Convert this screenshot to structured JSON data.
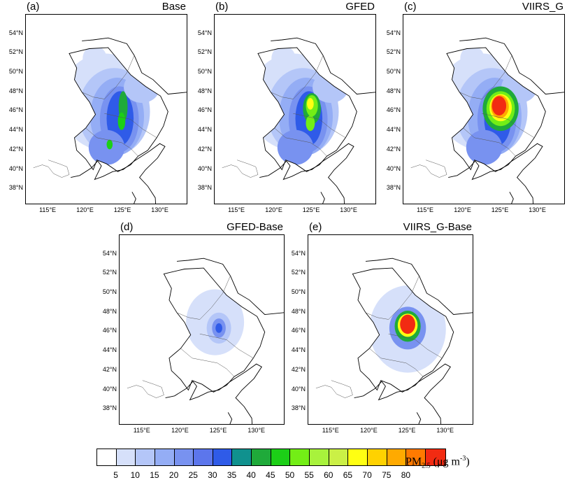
{
  "panels": [
    {
      "id": "a",
      "label": "(a)",
      "title": "Base",
      "intensity": 1
    },
    {
      "id": "b",
      "label": "(b)",
      "title": "GFED",
      "intensity": 2
    },
    {
      "id": "c",
      "label": "(c)",
      "title": "VIIRS_G",
      "intensity": 3
    },
    {
      "id": "d",
      "label": "(d)",
      "title": "GFED-Base",
      "intensity": 4
    },
    {
      "id": "e",
      "label": "(e)",
      "title": "VIIRS_G-Base",
      "intensity": 5
    }
  ],
  "axes": {
    "lat_ticks": [
      "54°N",
      "52°N",
      "50°N",
      "48°N",
      "46°N",
      "44°N",
      "42°N",
      "40°N",
      "38°N"
    ],
    "lon_ticks": [
      "115°E",
      "120°E",
      "125°E",
      "130°E"
    ]
  },
  "colorbar": {
    "levels": [
      "5",
      "10",
      "15",
      "20",
      "25",
      "30",
      "35",
      "40",
      "45",
      "50",
      "55",
      "60",
      "65",
      "70",
      "75",
      "80"
    ],
    "colors": [
      "#ffffff",
      "#d6e0fa",
      "#b4c6f8",
      "#94adf5",
      "#7892f0",
      "#5c76ec",
      "#2f5be8",
      "#10918e",
      "#1faa3a",
      "#1ccf17",
      "#73ee16",
      "#a8f23c",
      "#cbf046",
      "#ffff12",
      "#ffd200",
      "#ffaa00",
      "#ff7a00",
      "#f22b12"
    ],
    "unit_main": "PM",
    "unit_sub": "2.5",
    "unit_rest": " (μg m",
    "unit_sup": "-3",
    "unit_end": ")"
  }
}
